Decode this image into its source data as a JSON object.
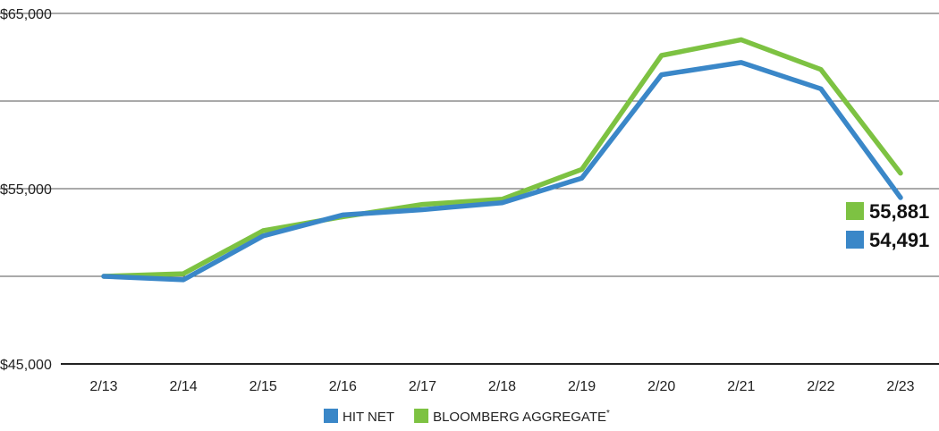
{
  "chart_data": {
    "type": "line",
    "categories": [
      "2/13",
      "2/14",
      "2/15",
      "2/16",
      "2/17",
      "2/18",
      "2/19",
      "2/20",
      "2/21",
      "2/22",
      "2/23"
    ],
    "series": [
      {
        "name": "BLOOMBERG AGGREGATE",
        "name_marker": "*",
        "color": "#7dc242",
        "values": [
          50000,
          50150,
          52600,
          53400,
          54100,
          54400,
          56100,
          62600,
          63500,
          61800,
          55881
        ],
        "end_label": "55,881"
      },
      {
        "name": "HIT NET",
        "name_marker": "",
        "color": "#3a87c8",
        "values": [
          50000,
          49800,
          52300,
          53500,
          53800,
          54200,
          55600,
          61500,
          62200,
          60700,
          54491
        ],
        "end_label": "54,491"
      }
    ],
    "ylim": [
      45000,
      65000
    ],
    "yticks": [
      {
        "value": 45000,
        "label": "$45,000"
      },
      {
        "value": 50000,
        "label": ""
      },
      {
        "value": 55000,
        "label": "$55,000"
      },
      {
        "value": 60000,
        "label": ""
      },
      {
        "value": 65000,
        "label": "$65,000"
      }
    ],
    "grid": true,
    "legend": {
      "placement": "bottom",
      "order": [
        1,
        0
      ]
    },
    "title": "",
    "xlabel": "",
    "ylabel": ""
  }
}
